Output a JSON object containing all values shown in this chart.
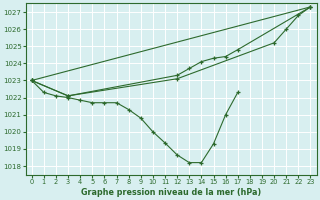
{
  "xlabel": "Graphe pression niveau de la mer (hPa)",
  "ylim": [
    1017.5,
    1027.5
  ],
  "xlim": [
    -0.5,
    23.5
  ],
  "yticks": [
    1018,
    1019,
    1020,
    1021,
    1022,
    1023,
    1024,
    1025,
    1026,
    1027
  ],
  "xticks": [
    0,
    1,
    2,
    3,
    4,
    5,
    6,
    7,
    8,
    9,
    10,
    11,
    12,
    13,
    14,
    15,
    16,
    17,
    18,
    19,
    20,
    21,
    22,
    23
  ],
  "bg_color": "#d8eff0",
  "grid_color": "#ffffff",
  "line_color": "#2d6a2d",
  "line_main": [
    1023.0,
    1022.3,
    1022.1,
    1022.0,
    1021.85,
    1021.7,
    1021.7,
    1021.7,
    1021.3,
    1020.8,
    1020.0,
    1019.35,
    1018.65,
    1018.2,
    1018.2,
    1019.3,
    1021.0,
    1022.3,
    null,
    null,
    null,
    null,
    null,
    null
  ],
  "line_straight_top": [
    1023.0,
    null,
    null,
    null,
    null,
    null,
    null,
    null,
    null,
    null,
    null,
    null,
    null,
    null,
    null,
    null,
    null,
    null,
    null,
    null,
    null,
    null,
    null,
    1027.3
  ],
  "line_mid1": [
    1023.0,
    null,
    null,
    1022.1,
    null,
    null,
    null,
    null,
    null,
    null,
    null,
    null,
    1023.1,
    null,
    null,
    null,
    null,
    null,
    null,
    null,
    1025.2,
    1026.0,
    1026.8,
    1027.3
  ],
  "line_mid2": [
    1023.0,
    null,
    null,
    1022.1,
    null,
    null,
    null,
    null,
    null,
    null,
    null,
    null,
    1023.3,
    1023.7,
    1024.1,
    1024.3,
    1024.4,
    1024.8,
    null,
    null,
    null,
    null,
    null,
    1027.3
  ]
}
